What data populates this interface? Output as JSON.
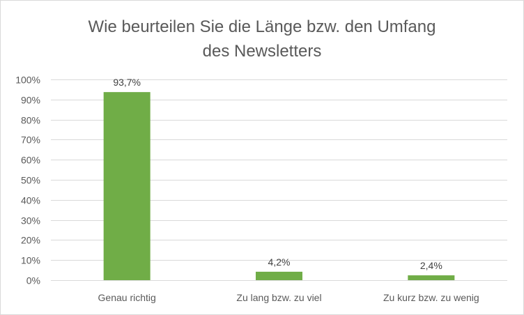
{
  "chart_data": {
    "type": "bar",
    "title_lines": [
      "Wie beurteilen Sie die Länge bzw. den Umfang",
      "des Newsletters"
    ],
    "categories": [
      "Genau richtig",
      "Zu lang bzw. zu viel",
      "Zu kurz bzw. zu wenig"
    ],
    "values": [
      93.7,
      4.2,
      2.4
    ],
    "data_labels": [
      "93,7%",
      "4,2%",
      "2,4%"
    ],
    "ylim": [
      0,
      100
    ],
    "y_ticks": [
      0,
      10,
      20,
      30,
      40,
      50,
      60,
      70,
      80,
      90,
      100
    ],
    "y_tick_labels": [
      "0%",
      "10%",
      "20%",
      "30%",
      "40%",
      "50%",
      "60%",
      "70%",
      "80%",
      "90%",
      "100%"
    ],
    "grid": true,
    "xlabel": "",
    "ylabel": "",
    "bar_color": "#70ad47",
    "grid_color": "#d9d9d9"
  }
}
